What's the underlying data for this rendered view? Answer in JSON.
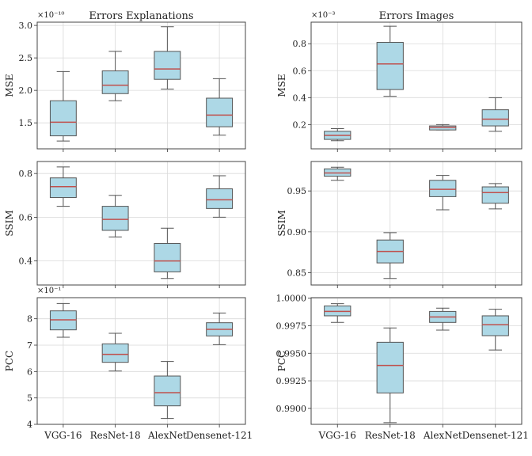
{
  "chart_data": [
    {
      "type": "box",
      "title": "Errors Explanations",
      "ylabel": "MSE",
      "multiplier": "×10⁻¹⁰",
      "categories": [
        "VGG-16",
        "ResNet-18",
        "AlexNet",
        "Densenet-121"
      ],
      "ylim": [
        1.1,
        3.05
      ],
      "yticks": [
        "1.5",
        "2.0",
        "2.5",
        "3.0"
      ],
      "boxes": [
        {
          "whisker_low": 1.22,
          "q1": 1.3,
          "median": 1.51,
          "q3": 1.84,
          "whisker_high": 2.29
        },
        {
          "whisker_low": 1.84,
          "q1": 1.95,
          "median": 2.08,
          "q3": 2.3,
          "whisker_high": 2.6
        },
        {
          "whisker_low": 2.02,
          "q1": 2.17,
          "median": 2.33,
          "q3": 2.6,
          "whisker_high": 2.98
        },
        {
          "whisker_low": 1.31,
          "q1": 1.44,
          "median": 1.62,
          "q3": 1.88,
          "whisker_high": 2.18
        }
      ]
    },
    {
      "type": "box",
      "title": "Errors Images",
      "ylabel": "MSE",
      "multiplier": "×10⁻³",
      "categories": [
        "VGG-16",
        "ResNet-18",
        "AlexNet",
        "Densenet-121"
      ],
      "ylim": [
        0.02,
        0.96
      ],
      "yticks": [
        "0.2",
        "0.4",
        "0.6",
        "0.8"
      ],
      "boxes": [
        {
          "whisker_low": 0.08,
          "q1": 0.09,
          "median": 0.12,
          "q3": 0.15,
          "whisker_high": 0.17
        },
        {
          "whisker_low": 0.41,
          "q1": 0.46,
          "median": 0.65,
          "q3": 0.81,
          "whisker_high": 0.93
        },
        {
          "whisker_low": 0.16,
          "q1": 0.16,
          "median": 0.18,
          "q3": 0.19,
          "whisker_high": 0.2
        },
        {
          "whisker_low": 0.15,
          "q1": 0.19,
          "median": 0.24,
          "q3": 0.31,
          "whisker_high": 0.4
        }
      ]
    },
    {
      "type": "box",
      "title": "",
      "ylabel": "SSIM",
      "multiplier": "",
      "categories": [
        "VGG-16",
        "ResNet-18",
        "AlexNet",
        "Densenet-121"
      ],
      "ylim": [
        0.29,
        0.855
      ],
      "yticks": [
        "0.4",
        "0.6",
        "0.8"
      ],
      "boxes": [
        {
          "whisker_low": 0.65,
          "q1": 0.69,
          "median": 0.74,
          "q3": 0.78,
          "whisker_high": 0.83
        },
        {
          "whisker_low": 0.51,
          "q1": 0.54,
          "median": 0.59,
          "q3": 0.65,
          "whisker_high": 0.7
        },
        {
          "whisker_low": 0.32,
          "q1": 0.35,
          "median": 0.4,
          "q3": 0.48,
          "whisker_high": 0.55
        },
        {
          "whisker_low": 0.6,
          "q1": 0.64,
          "median": 0.68,
          "q3": 0.73,
          "whisker_high": 0.79
        }
      ]
    },
    {
      "type": "box",
      "title": "",
      "ylabel": "SSIM",
      "multiplier": "",
      "categories": [
        "VGG-16",
        "ResNet-18",
        "AlexNet",
        "Densenet-121"
      ],
      "ylim": [
        0.835,
        0.986
      ],
      "yticks": [
        "0.85",
        "0.90",
        "0.95"
      ],
      "boxes": [
        {
          "whisker_low": 0.963,
          "q1": 0.968,
          "median": 0.972,
          "q3": 0.977,
          "whisker_high": 0.979
        },
        {
          "whisker_low": 0.843,
          "q1": 0.862,
          "median": 0.876,
          "q3": 0.89,
          "whisker_high": 0.899
        },
        {
          "whisker_low": 0.927,
          "q1": 0.943,
          "median": 0.952,
          "q3": 0.963,
          "whisker_high": 0.969
        },
        {
          "whisker_low": 0.928,
          "q1": 0.935,
          "median": 0.948,
          "q3": 0.955,
          "whisker_high": 0.959
        }
      ]
    },
    {
      "type": "box",
      "title": "",
      "ylabel": "PCC",
      "multiplier": "×10⁻¹",
      "categories": [
        "VGG-16",
        "ResNet-18",
        "AlexNet",
        "Densenet-121"
      ],
      "ylim": [
        4.0,
        8.8
      ],
      "yticks": [
        "4",
        "5",
        "6",
        "7",
        "8"
      ],
      "boxes": [
        {
          "whisker_low": 7.3,
          "q1": 7.58,
          "median": 7.96,
          "q3": 8.3,
          "whisker_high": 8.58
        },
        {
          "whisker_low": 6.02,
          "q1": 6.35,
          "median": 6.65,
          "q3": 7.05,
          "whisker_high": 7.45
        },
        {
          "whisker_low": 4.22,
          "q1": 4.7,
          "median": 5.2,
          "q3": 5.83,
          "whisker_high": 6.38
        },
        {
          "whisker_low": 7.02,
          "q1": 7.35,
          "median": 7.6,
          "q3": 7.85,
          "whisker_high": 8.22
        }
      ]
    },
    {
      "type": "box",
      "title": "",
      "ylabel": "PCC",
      "multiplier": "",
      "categories": [
        "VGG-16",
        "ResNet-18",
        "AlexNet",
        "Densenet-121"
      ],
      "ylim": [
        0.98855,
        1.00005
      ],
      "yticks": [
        "0.9900",
        "0.9925",
        "0.9950",
        "0.9975",
        "1.0000"
      ],
      "boxes": [
        {
          "whisker_low": 0.9978,
          "q1": 0.9984,
          "median": 0.9988,
          "q3": 0.9993,
          "whisker_high": 0.9995
        },
        {
          "whisker_low": 0.9887,
          "q1": 0.9914,
          "median": 0.9939,
          "q3": 0.996,
          "whisker_high": 0.9973
        },
        {
          "whisker_low": 0.9971,
          "q1": 0.9978,
          "median": 0.9983,
          "q3": 0.9988,
          "whisker_high": 0.9991
        },
        {
          "whisker_low": 0.9953,
          "q1": 0.9966,
          "median": 0.9976,
          "q3": 0.9984,
          "whisker_high": 0.999
        }
      ]
    }
  ],
  "style": {
    "box_fill": "#add8e6",
    "median_color": "#c0504d",
    "edge_color": "#555555",
    "grid_color": "#d9d9d9"
  }
}
